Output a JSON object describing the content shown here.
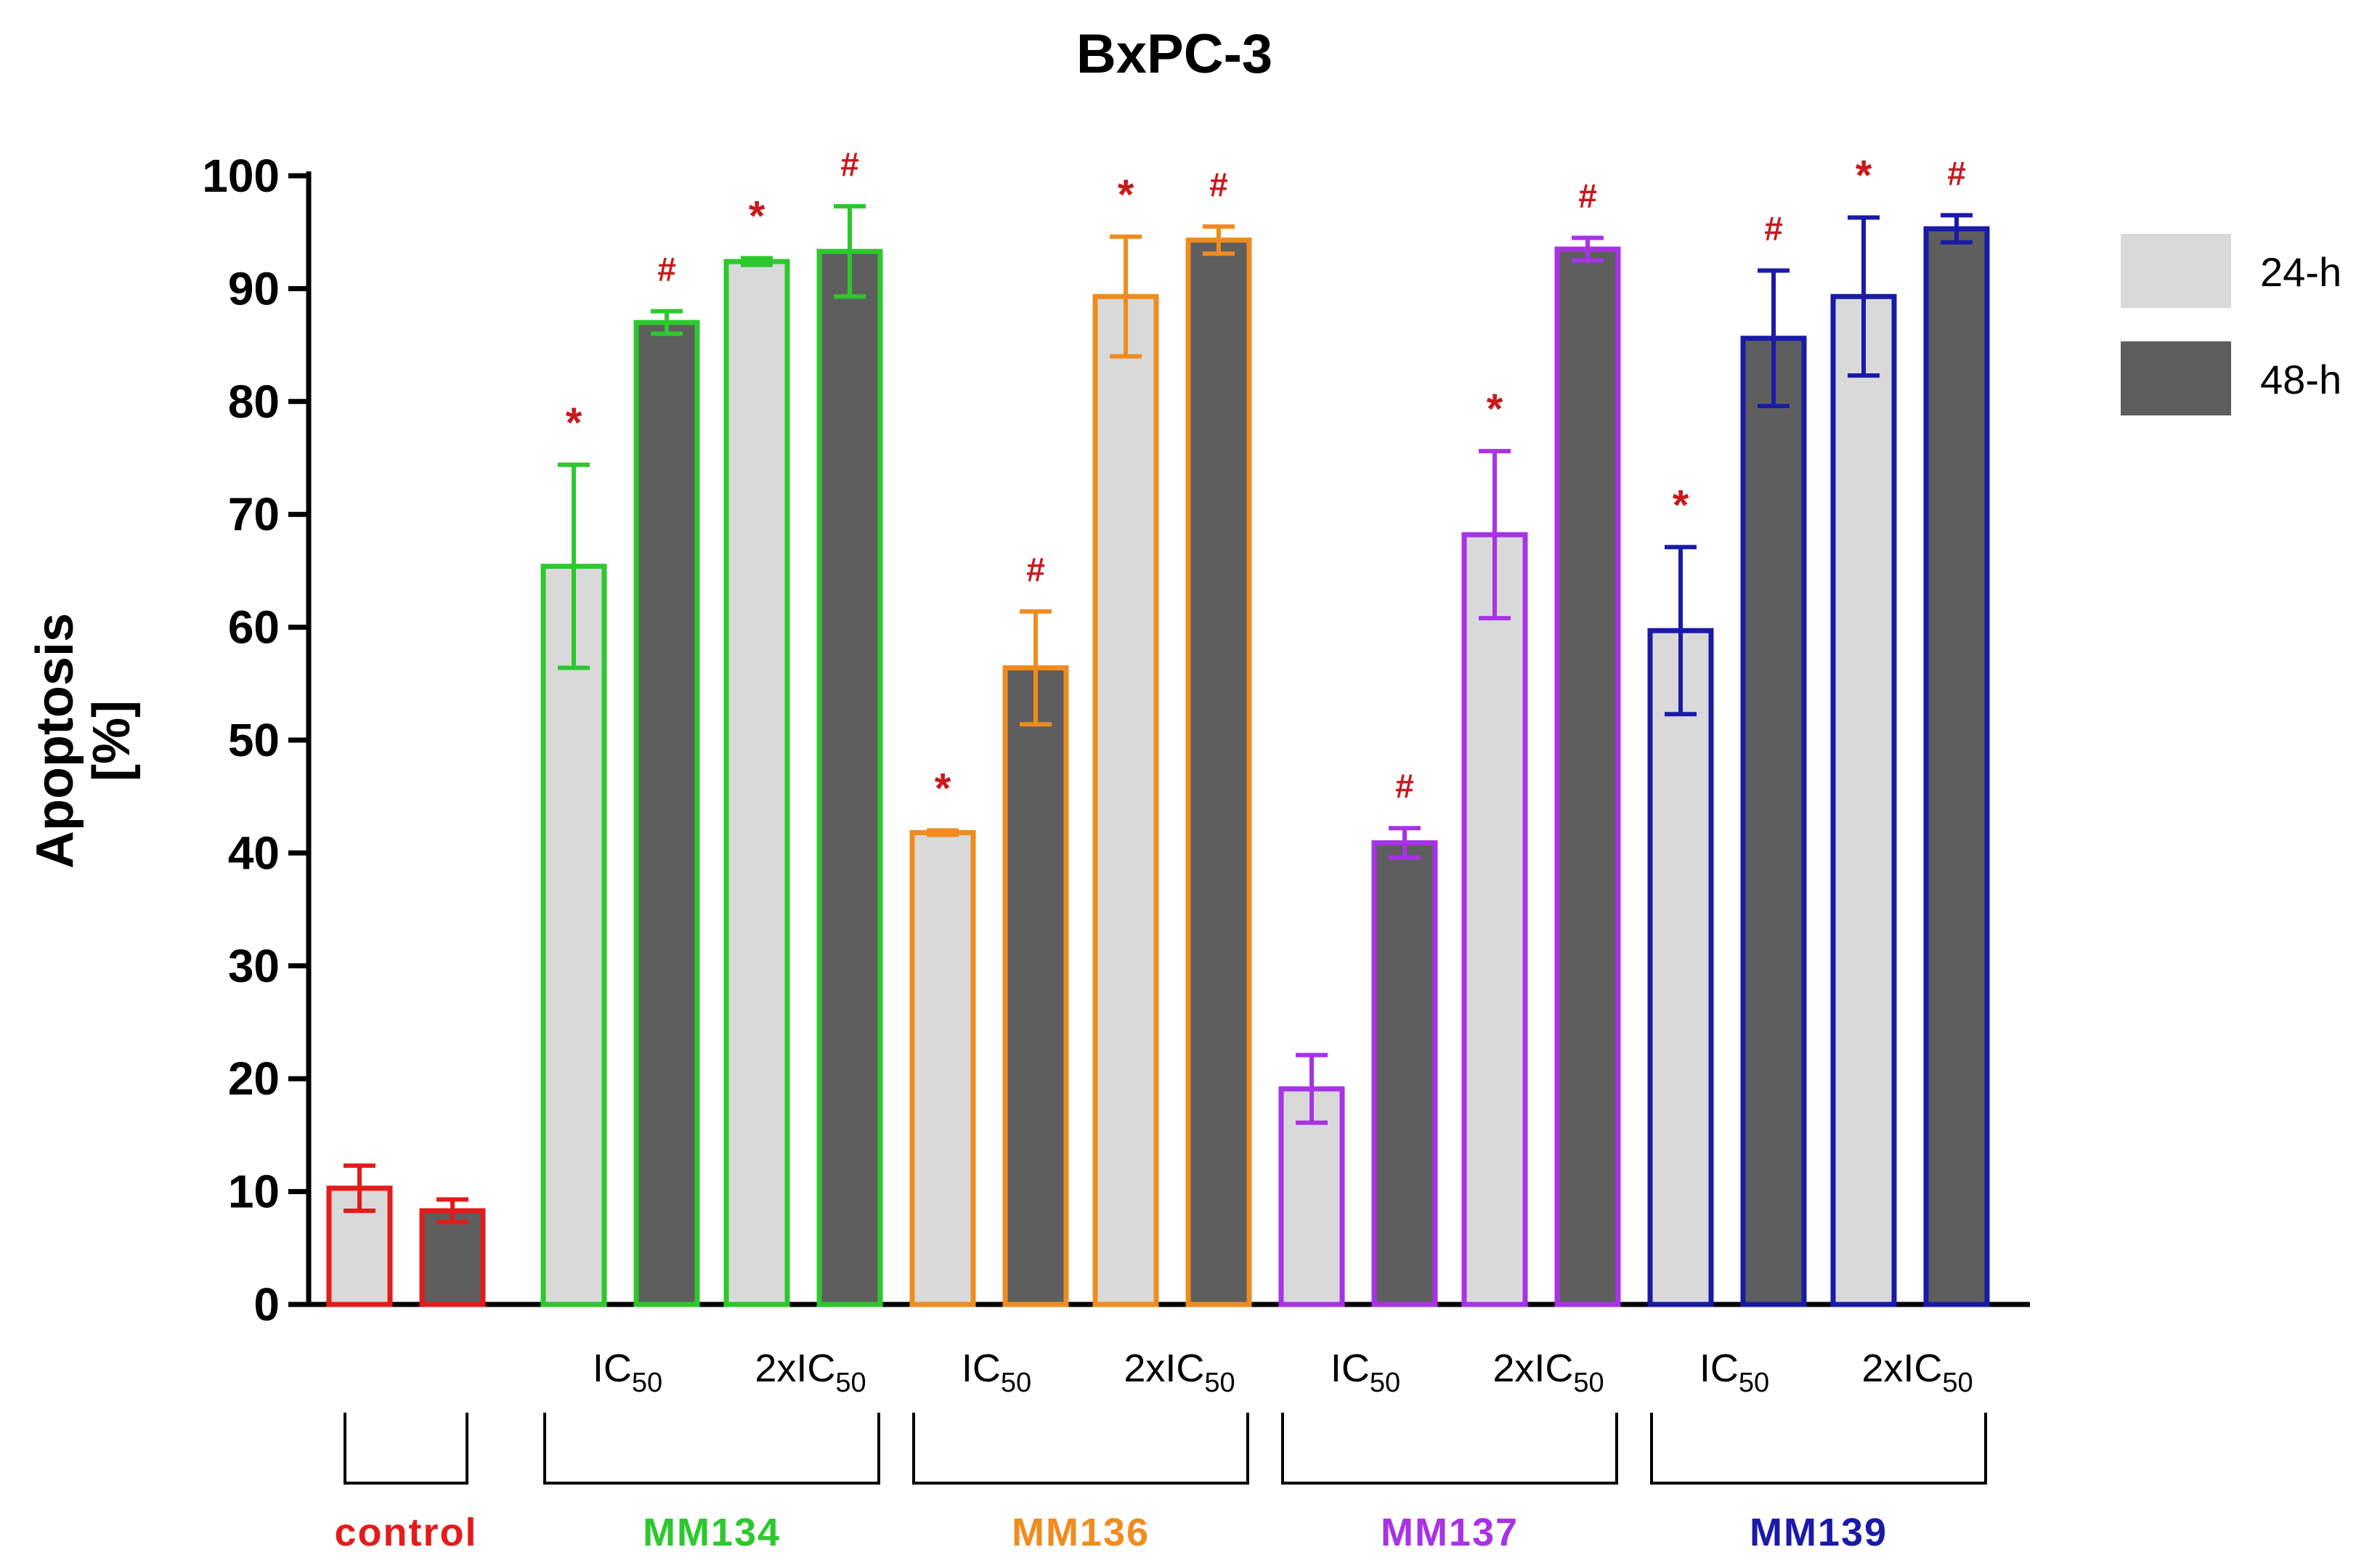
{
  "chart_data": {
    "type": "bar",
    "title": "BxPC-3",
    "ylabel": "Apoptosis",
    "ylabel_unit": "[%]",
    "ylim": [
      0,
      100
    ],
    "yticks": [
      0,
      10,
      20,
      30,
      40,
      50,
      60,
      70,
      80,
      90,
      100
    ],
    "legend": [
      {
        "name": "24-h",
        "color": "#d9d9d9"
      },
      {
        "name": "48-h",
        "color": "#5e5e5e"
      }
    ],
    "groups": [
      {
        "name": "control",
        "color": "#e31b1b",
        "subgroups": [
          {
            "label": "",
            "sub": "",
            "values": [
              10.3,
              8.3
            ],
            "errors": [
              2.0,
              1.0
            ],
            "marks": [
              "",
              ""
            ]
          }
        ]
      },
      {
        "name": "MM134",
        "color": "#2dc82d",
        "subgroups": [
          {
            "label": "IC",
            "sub": "50",
            "values": [
              65.4,
              87.0
            ],
            "errors": [
              9.0,
              1.0
            ],
            "marks": [
              "*",
              "#"
            ]
          },
          {
            "label": "2xIC",
            "sub": "50",
            "values": [
              92.4,
              93.3
            ],
            "errors": [
              0.3,
              4.0
            ],
            "marks": [
              "*",
              "#"
            ]
          }
        ]
      },
      {
        "name": "MM136",
        "color": "#ef8c1e",
        "subgroups": [
          {
            "label": "IC",
            "sub": "50",
            "values": [
              41.8,
              56.4
            ],
            "errors": [
              0.2,
              5.0
            ],
            "marks": [
              "*",
              "#"
            ]
          },
          {
            "label": "2xIC",
            "sub": "50",
            "values": [
              89.3,
              94.3
            ],
            "errors": [
              5.3,
              1.2
            ],
            "marks": [
              "*",
              "#"
            ]
          }
        ]
      },
      {
        "name": "MM137",
        "color": "#a832e6",
        "subgroups": [
          {
            "label": "IC",
            "sub": "50",
            "values": [
              19.1,
              40.9
            ],
            "errors": [
              3.0,
              1.3
            ],
            "marks": [
              "",
              "#"
            ]
          },
          {
            "label": "2xIC",
            "sub": "50",
            "values": [
              68.2,
              93.5
            ],
            "errors": [
              7.4,
              1.0
            ],
            "marks": [
              "*",
              "#"
            ]
          }
        ]
      },
      {
        "name": "MM139",
        "color": "#1a1aa8",
        "subgroups": [
          {
            "label": "IC",
            "sub": "50",
            "values": [
              59.7,
              85.6
            ],
            "errors": [
              7.4,
              6.0
            ],
            "marks": [
              "*",
              "#"
            ]
          },
          {
            "label": "2xIC",
            "sub": "50",
            "values": [
              89.3,
              95.3
            ],
            "errors": [
              7.0,
              1.2
            ],
            "marks": [
              "*",
              "#"
            ]
          }
        ]
      }
    ]
  }
}
